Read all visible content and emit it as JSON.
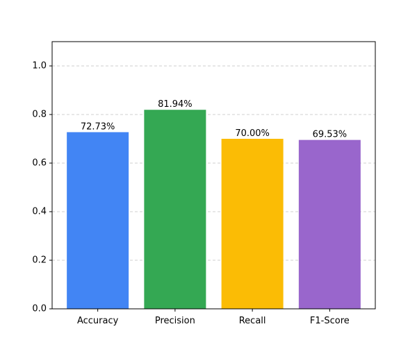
{
  "chart_data": {
    "type": "bar",
    "title": "",
    "xlabel": "",
    "ylabel": "",
    "categories": [
      "Accuracy",
      "Precision",
      "Recall",
      "F1-Score"
    ],
    "values": [
      0.7273,
      0.8194,
      0.7,
      0.6953
    ],
    "value_labels": [
      "72.73%",
      "81.94%",
      "70.00%",
      "69.53%"
    ],
    "colors": [
      "#4285F4",
      "#34A853",
      "#FBBC05",
      "#9966CC"
    ],
    "ylim": [
      0,
      1.1
    ],
    "yticks": [
      0.0,
      0.2,
      0.4,
      0.6,
      0.8,
      1.0
    ],
    "ytick_labels": [
      "0.0",
      "0.2",
      "0.4",
      "0.6",
      "0.8",
      "1.0"
    ],
    "grid": {
      "axis": "y",
      "style": "dashed"
    }
  }
}
